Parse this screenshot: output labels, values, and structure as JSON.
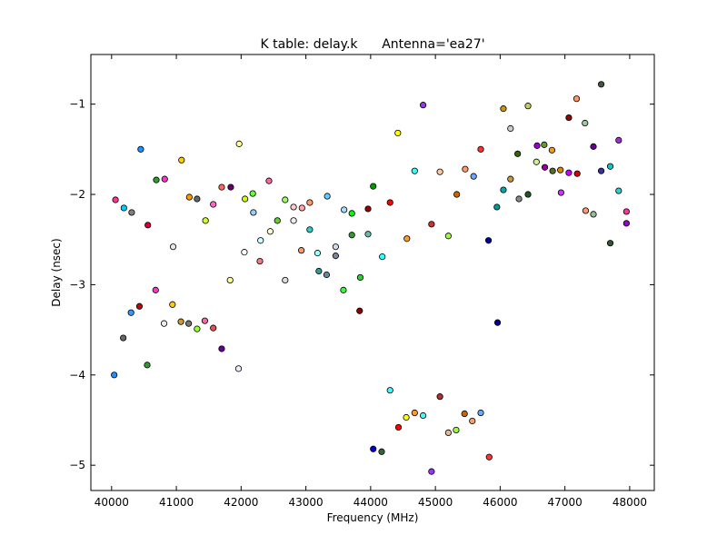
{
  "chart_data": {
    "type": "scatter",
    "title": "K table: delay.k      Antenna='ea27'",
    "xlabel": "Frequency (MHz)",
    "ylabel": "Delay (nsec)",
    "xlim": [
      39680,
      48380
    ],
    "ylim": [
      -5.28,
      -0.45
    ],
    "xticks": [
      40000,
      41000,
      42000,
      43000,
      44000,
      45000,
      46000,
      47000,
      48000
    ],
    "yticks": [
      -1,
      -2,
      -3,
      -4,
      -5
    ],
    "xtick_labels": [
      "40000",
      "41000",
      "42000",
      "43000",
      "44000",
      "45000",
      "46000",
      "47000",
      "48000"
    ],
    "ytick_labels": [
      "−1",
      "−2",
      "−3",
      "−4",
      "−5"
    ],
    "grid": false,
    "points": [
      {
        "x": 40060,
        "y": -2.06,
        "color": "#ff3399"
      },
      {
        "x": 40190,
        "y": -2.15,
        "color": "#00ccff"
      },
      {
        "x": 40310,
        "y": -2.2,
        "color": "#808080"
      },
      {
        "x": 40450,
        "y": -1.5,
        "color": "#1e90ff"
      },
      {
        "x": 40560,
        "y": -2.34,
        "color": "#cc0033"
      },
      {
        "x": 40690,
        "y": -1.84,
        "color": "#339933"
      },
      {
        "x": 40820,
        "y": -1.83,
        "color": "#ff33cc"
      },
      {
        "x": 40950,
        "y": -2.58,
        "color": "#e8e8e8"
      },
      {
        "x": 41080,
        "y": -1.62,
        "color": "#ffcc00"
      },
      {
        "x": 41200,
        "y": -2.03,
        "color": "#ff9900"
      },
      {
        "x": 41320,
        "y": -2.05,
        "color": "#666666"
      },
      {
        "x": 41450,
        "y": -2.29,
        "color": "#ccff33"
      },
      {
        "x": 41570,
        "y": -2.11,
        "color": "#ff66cc"
      },
      {
        "x": 41700,
        "y": -1.92,
        "color": "#ff6666"
      },
      {
        "x": 41840,
        "y": -1.92,
        "color": "#660066"
      },
      {
        "x": 41970,
        "y": -1.44,
        "color": "#ffff99"
      },
      {
        "x": 42060,
        "y": -2.05,
        "color": "#ccff00"
      },
      {
        "x": 42180,
        "y": -1.99,
        "color": "#66ff33"
      },
      {
        "x": 42190,
        "y": -2.2,
        "color": "#99ccff"
      },
      {
        "x": 42300,
        "y": -2.51,
        "color": "#ccffff"
      },
      {
        "x": 42430,
        "y": -1.85,
        "color": "#ff6699"
      },
      {
        "x": 42450,
        "y": -2.41,
        "color": "#ffffcc"
      },
      {
        "x": 42560,
        "y": -2.29,
        "color": "#66cc33"
      },
      {
        "x": 42680,
        "y": -2.06,
        "color": "#99ff66"
      },
      {
        "x": 42810,
        "y": -2.14,
        "color": "#ffcccc"
      },
      {
        "x": 42940,
        "y": -2.15,
        "color": "#ffaaaa"
      },
      {
        "x": 43060,
        "y": -2.09,
        "color": "#ff9966"
      },
      {
        "x": 43060,
        "y": -2.39,
        "color": "#33cccc"
      },
      {
        "x": 43180,
        "y": -2.65,
        "color": "#99ffff"
      },
      {
        "x": 43330,
        "y": -2.02,
        "color": "#66ccff"
      },
      {
        "x": 43460,
        "y": -2.58,
        "color": "#ccddee"
      },
      {
        "x": 43590,
        "y": -2.17,
        "color": "#aaddff"
      },
      {
        "x": 43710,
        "y": -2.21,
        "color": "#00ff00"
      },
      {
        "x": 43960,
        "y": -2.16,
        "color": "#990000"
      },
      {
        "x": 44040,
        "y": -1.91,
        "color": "#009900"
      },
      {
        "x": 44180,
        "y": -2.69,
        "color": "#33ffff"
      },
      {
        "x": 44300,
        "y": -2.09,
        "color": "#ff0000"
      },
      {
        "x": 44420,
        "y": -1.32,
        "color": "#ffff00"
      },
      {
        "x": 44560,
        "y": -2.49,
        "color": "#ff9933"
      },
      {
        "x": 44680,
        "y": -1.74,
        "color": "#33ffff"
      },
      {
        "x": 44810,
        "y": -1.01,
        "color": "#9933ff"
      },
      {
        "x": 44940,
        "y": -2.33,
        "color": "#cc3333"
      },
      {
        "x": 45070,
        "y": -1.75,
        "color": "#ffcc99"
      },
      {
        "x": 45200,
        "y": -2.46,
        "color": "#99ff33"
      },
      {
        "x": 45330,
        "y": -2.0,
        "color": "#cc6600"
      },
      {
        "x": 45460,
        "y": -1.72,
        "color": "#ff9966"
      },
      {
        "x": 45590,
        "y": -1.8,
        "color": "#66aaff"
      },
      {
        "x": 45700,
        "y": -1.5,
        "color": "#ff3333"
      },
      {
        "x": 45820,
        "y": -2.51,
        "color": "#000099"
      },
      {
        "x": 45950,
        "y": -2.14,
        "color": "#009999"
      },
      {
        "x": 46050,
        "y": -1.95,
        "color": "#00aaaa"
      },
      {
        "x": 46050,
        "y": -1.05,
        "color": "#cc9900"
      },
      {
        "x": 46160,
        "y": -1.27,
        "color": "#cccccc"
      },
      {
        "x": 46160,
        "y": -1.83,
        "color": "#cc9933"
      },
      {
        "x": 46270,
        "y": -1.55,
        "color": "#336600"
      },
      {
        "x": 46290,
        "y": -2.05,
        "color": "#888888"
      },
      {
        "x": 46430,
        "y": -1.02,
        "color": "#cccc66"
      },
      {
        "x": 46430,
        "y": -2.0,
        "color": "#225522"
      },
      {
        "x": 46560,
        "y": -1.64,
        "color": "#ccee99"
      },
      {
        "x": 46570,
        "y": -1.46,
        "color": "#9900cc"
      },
      {
        "x": 46680,
        "y": -1.45,
        "color": "#669933"
      },
      {
        "x": 46690,
        "y": -1.7,
        "color": "#990099"
      },
      {
        "x": 46800,
        "y": -1.51,
        "color": "#ff9900"
      },
      {
        "x": 46810,
        "y": -1.74,
        "color": "#556b2f"
      },
      {
        "x": 46930,
        "y": -1.73,
        "color": "#dd8800"
      },
      {
        "x": 46940,
        "y": -1.98,
        "color": "#cc33ff"
      },
      {
        "x": 47060,
        "y": -1.15,
        "color": "#990000"
      },
      {
        "x": 47060,
        "y": -1.76,
        "color": "#cc00ff"
      },
      {
        "x": 47180,
        "y": -0.94,
        "color": "#ff9966"
      },
      {
        "x": 47190,
        "y": -1.77,
        "color": "#dd0000"
      },
      {
        "x": 47310,
        "y": -1.21,
        "color": "#99cc99"
      },
      {
        "x": 47320,
        "y": -2.18,
        "color": "#ff9977"
      },
      {
        "x": 47440,
        "y": -1.47,
        "color": "#660099"
      },
      {
        "x": 47440,
        "y": -2.22,
        "color": "#99bb99"
      },
      {
        "x": 47560,
        "y": -0.78,
        "color": "#445544"
      },
      {
        "x": 47560,
        "y": -1.74,
        "color": "#333399"
      },
      {
        "x": 47700,
        "y": -1.69,
        "color": "#00cccc"
      },
      {
        "x": 47700,
        "y": -2.54,
        "color": "#335533"
      },
      {
        "x": 47830,
        "y": -1.4,
        "color": "#9933cc"
      },
      {
        "x": 47830,
        "y": -1.96,
        "color": "#33cccc"
      },
      {
        "x": 47950,
        "y": -2.19,
        "color": "#ff3399"
      },
      {
        "x": 47950,
        "y": -2.32,
        "color": "#9900cc"
      },
      {
        "x": 40040,
        "y": -4.0,
        "color": "#1e90ff"
      },
      {
        "x": 40180,
        "y": -3.59,
        "color": "#666666"
      },
      {
        "x": 40300,
        "y": -3.31,
        "color": "#3399ff"
      },
      {
        "x": 40430,
        "y": -3.24,
        "color": "#cc0000"
      },
      {
        "x": 40550,
        "y": -3.89,
        "color": "#339933"
      },
      {
        "x": 40680,
        "y": -3.06,
        "color": "#ff33cc"
      },
      {
        "x": 40810,
        "y": -3.43,
        "color": "#eeeeee"
      },
      {
        "x": 40940,
        "y": -3.22,
        "color": "#ffcc00"
      },
      {
        "x": 41070,
        "y": -3.41,
        "color": "#cc9933"
      },
      {
        "x": 41190,
        "y": -3.43,
        "color": "#777777"
      },
      {
        "x": 41320,
        "y": -3.49,
        "color": "#99ff33"
      },
      {
        "x": 41440,
        "y": -3.4,
        "color": "#ff66aa"
      },
      {
        "x": 41570,
        "y": -3.48,
        "color": "#dd5555"
      },
      {
        "x": 41700,
        "y": -3.71,
        "color": "#660099"
      },
      {
        "x": 41830,
        "y": -2.95,
        "color": "#ffff99"
      },
      {
        "x": 41960,
        "y": -3.93,
        "color": "#eeeeff"
      },
      {
        "x": 42050,
        "y": -2.64,
        "color": "#ffffff"
      },
      {
        "x": 42290,
        "y": -2.74,
        "color": "#ff7777"
      },
      {
        "x": 42680,
        "y": -2.95,
        "color": "#dddddd"
      },
      {
        "x": 42810,
        "y": -2.29,
        "color": "#eeeeee"
      },
      {
        "x": 42930,
        "y": -2.62,
        "color": "#ff9966"
      },
      {
        "x": 43200,
        "y": -2.85,
        "color": "#339999"
      },
      {
        "x": 43320,
        "y": -2.89,
        "color": "#668899"
      },
      {
        "x": 43460,
        "y": -2.68,
        "color": "#778899"
      },
      {
        "x": 43580,
        "y": -3.06,
        "color": "#33ff33"
      },
      {
        "x": 43710,
        "y": -2.45,
        "color": "#339933"
      },
      {
        "x": 43830,
        "y": -3.29,
        "color": "#880000"
      },
      {
        "x": 43840,
        "y": -2.92,
        "color": "#33cc33"
      },
      {
        "x": 43960,
        "y": -2.44,
        "color": "#66bbaa"
      },
      {
        "x": 44040,
        "y": -4.82,
        "color": "#0000cc"
      },
      {
        "x": 44170,
        "y": -4.85,
        "color": "#336633"
      },
      {
        "x": 44300,
        "y": -4.17,
        "color": "#33ffff"
      },
      {
        "x": 44430,
        "y": -4.58,
        "color": "#ff0000"
      },
      {
        "x": 44550,
        "y": -4.47,
        "color": "#ffff00"
      },
      {
        "x": 44680,
        "y": -4.42,
        "color": "#ff9933"
      },
      {
        "x": 44810,
        "y": -4.45,
        "color": "#33ffff"
      },
      {
        "x": 44940,
        "y": -5.07,
        "color": "#9933ff"
      },
      {
        "x": 45070,
        "y": -4.24,
        "color": "#aa3333"
      },
      {
        "x": 45200,
        "y": -4.64,
        "color": "#ddbb99"
      },
      {
        "x": 45320,
        "y": -4.61,
        "color": "#99ff33"
      },
      {
        "x": 45450,
        "y": -4.43,
        "color": "#cc6600"
      },
      {
        "x": 45570,
        "y": -4.51,
        "color": "#ff9966"
      },
      {
        "x": 45700,
        "y": -4.42,
        "color": "#66aaff"
      },
      {
        "x": 45830,
        "y": -4.91,
        "color": "#ff3333"
      },
      {
        "x": 45960,
        "y": -3.42,
        "color": "#000099"
      }
    ]
  }
}
